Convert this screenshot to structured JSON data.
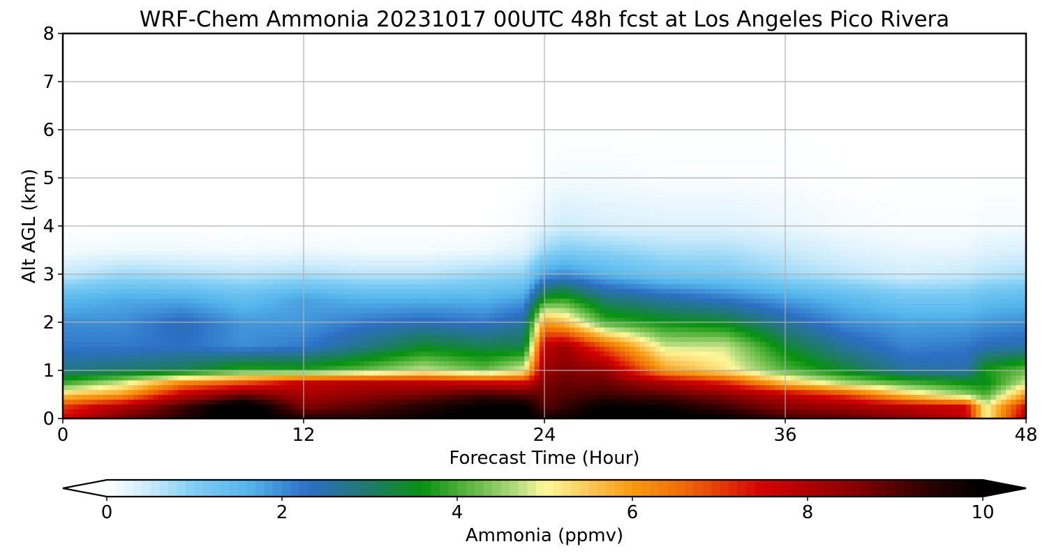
{
  "chart_data": {
    "type": "heatmap",
    "title": "WRF-Chem Ammonia  20231017 00UTC 48h fcst at Los Angeles Pico Rivera",
    "xlabel": "Forecast Time (Hour)",
    "ylabel": "Alt AGL (km)",
    "xlim": [
      0,
      48
    ],
    "ylim": [
      0,
      8
    ],
    "xticks": [
      0,
      12,
      24,
      36,
      48
    ],
    "yticks": [
      0,
      1,
      2,
      3,
      4,
      5,
      6,
      7,
      8
    ],
    "grid": true,
    "x": [
      0,
      3,
      6,
      9,
      12,
      15,
      18,
      21,
      23,
      24,
      25,
      27,
      30,
      33,
      36,
      39,
      42,
      45,
      46,
      48
    ],
    "y": [
      0,
      0.25,
      0.5,
      0.75,
      1,
      1.5,
      2,
      2.5,
      3,
      3.5,
      4,
      5,
      6,
      8
    ],
    "z": [
      [
        7.5,
        8.8,
        9.5,
        10.5,
        9.5,
        9.5,
        9.9,
        10.2,
        10.2,
        9.7,
        9.8,
        10.3,
        10.3,
        10.0,
        9.2,
        9.0,
        8.5,
        7.8,
        5.0,
        8.0
      ],
      [
        7.0,
        8.0,
        9.2,
        10.5,
        8.6,
        9.0,
        9.5,
        10.0,
        10.0,
        9.0,
        9.3,
        10.0,
        9.8,
        9.2,
        8.5,
        8.2,
        7.8,
        7.5,
        5.0,
        7.5
      ],
      [
        5.5,
        6.0,
        7.8,
        8.8,
        8.1,
        8.4,
        8.7,
        9.2,
        9.0,
        8.8,
        9.0,
        9.2,
        9.0,
        8.5,
        7.8,
        7.0,
        5.5,
        4.5,
        4.0,
        6.0
      ],
      [
        3.9,
        4.8,
        6.2,
        6.8,
        7.7,
        7.9,
        7.8,
        7.6,
        7.5,
        8.6,
        8.8,
        8.8,
        8.0,
        7.2,
        5.6,
        4.6,
        4.0,
        3.6,
        3.5,
        4.8
      ],
      [
        2.8,
        3.0,
        3.2,
        3.9,
        3.8,
        4.2,
        4.8,
        4.2,
        5.0,
        8.3,
        8.6,
        8.4,
        6.0,
        5.2,
        4.1,
        3.4,
        2.6,
        2.5,
        3.7,
        4.2
      ],
      [
        2.2,
        2.2,
        2.3,
        2.0,
        2.2,
        2.8,
        3.4,
        3.2,
        3.2,
        7.8,
        8.2,
        6.8,
        4.8,
        4.8,
        3.4,
        2.6,
        2.1,
        2.2,
        2.4,
        2.5
      ],
      [
        2.0,
        2.0,
        2.4,
        1.9,
        1.9,
        2.2,
        2.4,
        2.2,
        2.6,
        6.0,
        5.6,
        4.0,
        3.6,
        3.4,
        2.6,
        2.0,
        1.8,
        1.8,
        1.9,
        2.0
      ],
      [
        1.5,
        1.7,
        1.7,
        1.4,
        1.8,
        1.6,
        1.6,
        1.6,
        1.8,
        3.6,
        3.8,
        2.9,
        2.5,
        2.2,
        1.8,
        1.5,
        1.2,
        1.2,
        1.4,
        1.5
      ],
      [
        0.5,
        0.8,
        0.7,
        0.6,
        0.7,
        0.6,
        0.6,
        0.8,
        0.9,
        1.8,
        2.0,
        1.6,
        1.2,
        1.1,
        0.8,
        0.6,
        0.4,
        0.5,
        0.6,
        0.7
      ],
      [
        0.1,
        0.15,
        0.15,
        0.1,
        0.15,
        0.1,
        0.1,
        0.15,
        0.3,
        0.8,
        1.0,
        0.9,
        0.7,
        0.7,
        0.5,
        0.3,
        0.2,
        0.2,
        0.3,
        0.35
      ],
      [
        0.0,
        0.0,
        0.0,
        0.0,
        0.0,
        0.0,
        0.0,
        0.0,
        0.1,
        0.3,
        0.45,
        0.35,
        0.3,
        0.3,
        0.2,
        0.1,
        0.05,
        0.05,
        0.1,
        0.1
      ],
      [
        0,
        0,
        0,
        0,
        0,
        0,
        0,
        0,
        0,
        0.05,
        0.1,
        0.1,
        0.05,
        0.05,
        0.05,
        0,
        0,
        0,
        0,
        0
      ],
      [
        0,
        0,
        0,
        0,
        0,
        0,
        0,
        0,
        0,
        0,
        0,
        0,
        0,
        0,
        0,
        0,
        0,
        0,
        0,
        0
      ],
      [
        0,
        0,
        0,
        0,
        0,
        0,
        0,
        0,
        0,
        0,
        0,
        0,
        0,
        0,
        0,
        0,
        0,
        0,
        0,
        0
      ]
    ],
    "colorbar": {
      "label": "Ammonia  (ppmv)",
      "min": 0,
      "max": 10,
      "ticks": [
        0,
        2,
        4,
        6,
        8,
        10
      ],
      "extend": "both",
      "stops": [
        {
          "v": 0.0,
          "c": "#ffffff"
        },
        {
          "v": 0.5,
          "c": "#c8eafb"
        },
        {
          "v": 1.0,
          "c": "#7fcdf4"
        },
        {
          "v": 1.6,
          "c": "#55b6ec"
        },
        {
          "v": 2.3,
          "c": "#2c6fc4"
        },
        {
          "v": 3.0,
          "c": "#1f7a6a"
        },
        {
          "v": 3.6,
          "c": "#08920f"
        },
        {
          "v": 4.1,
          "c": "#56b43c"
        },
        {
          "v": 4.7,
          "c": "#b6dd80"
        },
        {
          "v": 5.0,
          "c": "#fff89a"
        },
        {
          "v": 5.5,
          "c": "#fcc85a"
        },
        {
          "v": 6.0,
          "c": "#f99a10"
        },
        {
          "v": 6.6,
          "c": "#ee6a08"
        },
        {
          "v": 7.5,
          "c": "#d40000"
        },
        {
          "v": 8.5,
          "c": "#8a0000"
        },
        {
          "v": 9.4,
          "c": "#2a0000"
        },
        {
          "v": 10.0,
          "c": "#000000"
        }
      ]
    }
  }
}
